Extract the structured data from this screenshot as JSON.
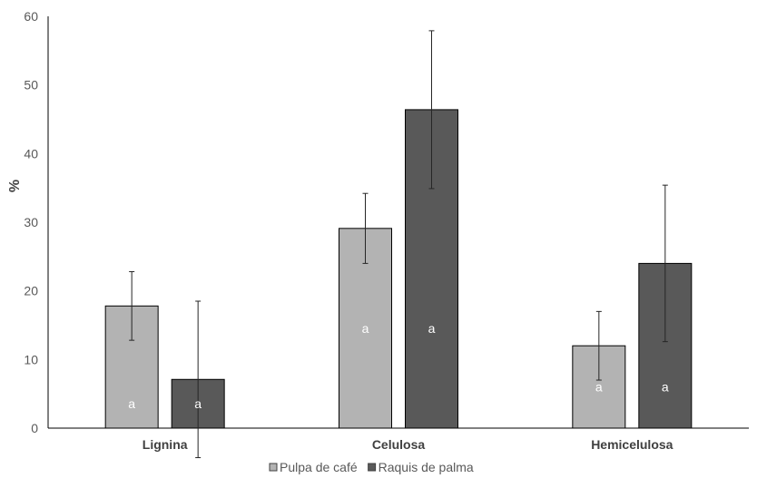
{
  "chart_data": {
    "type": "bar",
    "title": "",
    "xlabel": "",
    "ylabel": "%",
    "ylim": [
      0,
      60
    ],
    "yticks": [
      0,
      10,
      20,
      30,
      40,
      50,
      60
    ],
    "grid": false,
    "legend_placement": "bottom",
    "categories": [
      "Lignina",
      "Celulosa",
      "Hemicelulosa"
    ],
    "series": [
      {
        "name": "Pulpa de café",
        "color": "#b3b3b3",
        "values": [
          17.8,
          29.1,
          12.0
        ],
        "errors": [
          5.0,
          5.1,
          5.0
        ],
        "labels": [
          "a",
          "a",
          "a"
        ]
      },
      {
        "name": "Raquis de palma",
        "color": "#595959",
        "values": [
          7.1,
          46.4,
          24.0
        ],
        "errors": [
          11.4,
          11.5,
          11.4
        ],
        "labels": [
          "a",
          "a",
          "a"
        ]
      }
    ]
  }
}
